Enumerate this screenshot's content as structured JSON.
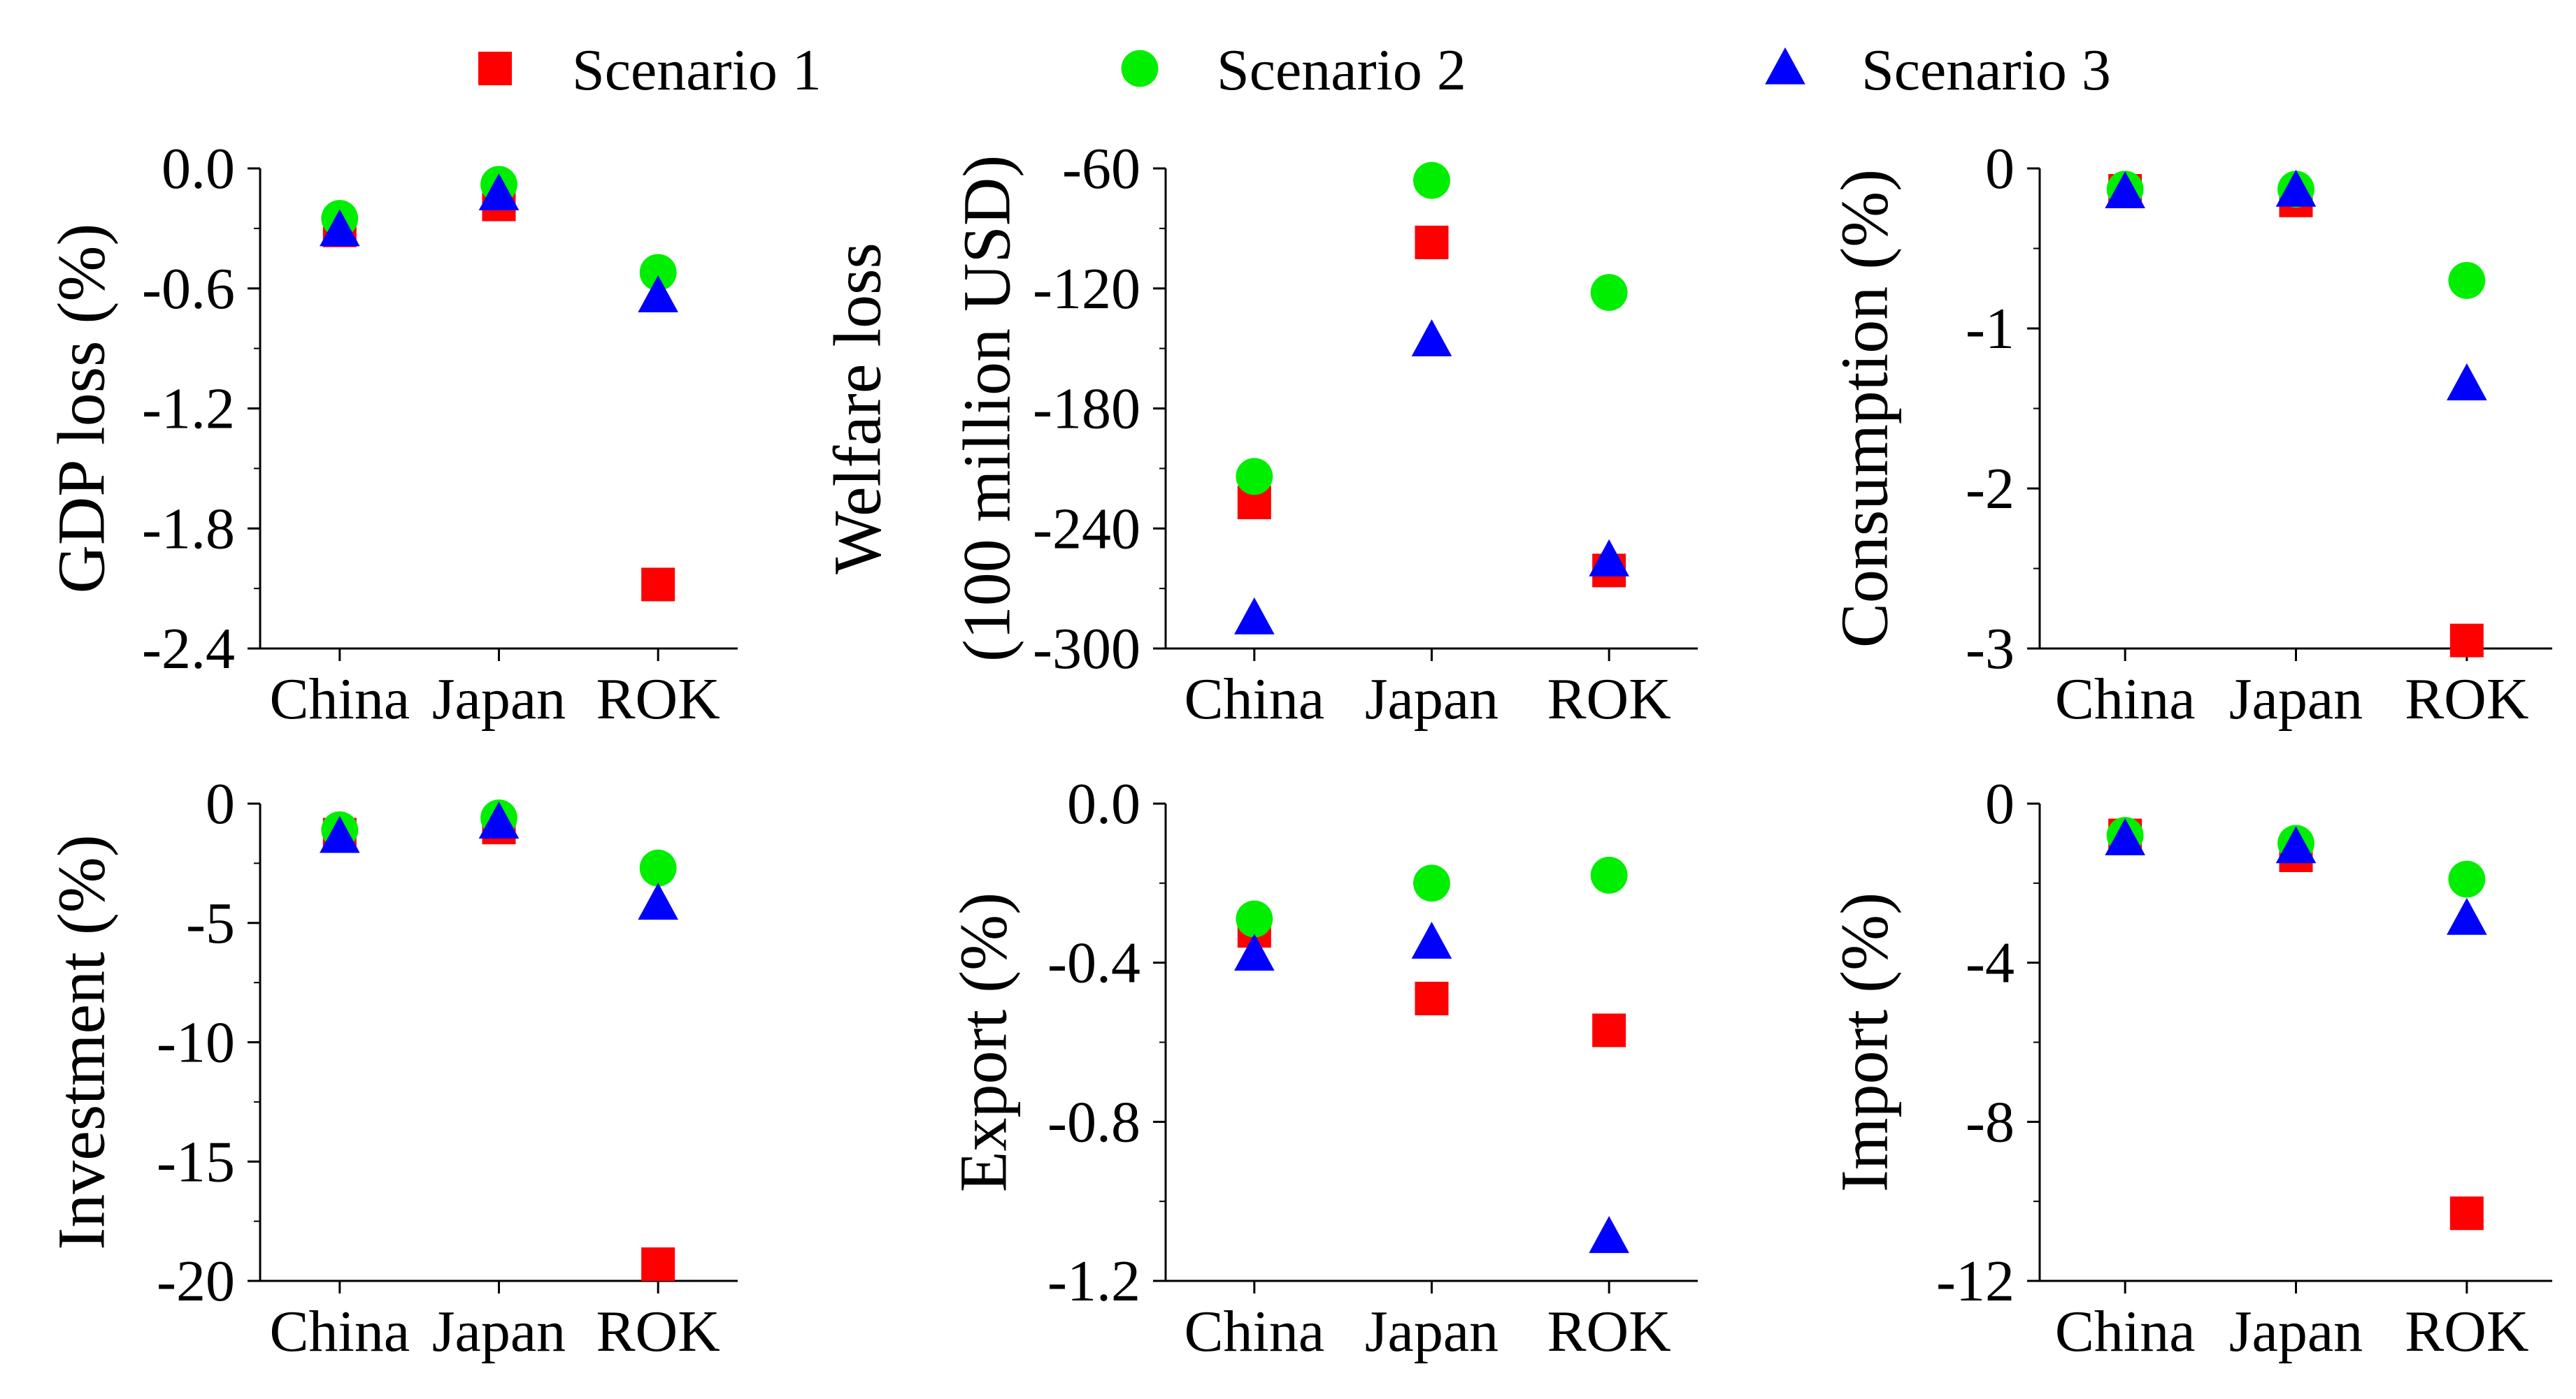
{
  "colors": {
    "Scenario 1": "#ff0000",
    "Scenario 2": "#00ee00",
    "Scenario 3": "#0000ff",
    "axis": "#000000"
  },
  "legend": [
    {
      "label": "Scenario 1",
      "marker": "square"
    },
    {
      "label": "Scenario 2",
      "marker": "circle"
    },
    {
      "label": "Scenario 3",
      "marker": "triangle"
    }
  ],
  "chart_data": [
    {
      "type": "scatter",
      "ylabel": [
        "GDP loss (%)"
      ],
      "categories": [
        "China",
        "Japan",
        "ROK"
      ],
      "ylim": [
        -2.4,
        0.0
      ],
      "yticks": [
        "0.0",
        "-0.6",
        "-1.2",
        "-1.8",
        "-2.4"
      ],
      "series": [
        {
          "name": "Scenario 1",
          "values": [
            -0.31,
            -0.18,
            -2.08
          ]
        },
        {
          "name": "Scenario 2",
          "values": [
            -0.25,
            -0.08,
            -0.52
          ]
        },
        {
          "name": "Scenario 3",
          "values": [
            -0.31,
            -0.13,
            -0.64
          ]
        }
      ]
    },
    {
      "type": "scatter",
      "ylabel": [
        "Welfare loss",
        "(100 million USD)"
      ],
      "categories": [
        "China",
        "Japan",
        "ROK"
      ],
      "ylim": [
        -300,
        -60
      ],
      "yticks": [
        "-60",
        "-120",
        "-180",
        "-240",
        "-300"
      ],
      "series": [
        {
          "name": "Scenario 1",
          "values": [
            -227,
            -97,
            -261
          ]
        },
        {
          "name": "Scenario 2",
          "values": [
            -214,
            -66,
            -122
          ]
        },
        {
          "name": "Scenario 3",
          "values": [
            -285,
            -146,
            -256
          ]
        }
      ]
    },
    {
      "type": "scatter",
      "ylabel": [
        "Consumption (%)"
      ],
      "categories": [
        "China",
        "Japan",
        "ROK"
      ],
      "ylim": [
        -3,
        0
      ],
      "yticks": [
        "0",
        "-1",
        "-2",
        "-3"
      ],
      "series": [
        {
          "name": "Scenario 1",
          "values": [
            -0.14,
            -0.2,
            -2.95
          ]
        },
        {
          "name": "Scenario 2",
          "values": [
            -0.13,
            -0.13,
            -0.7
          ]
        },
        {
          "name": "Scenario 3",
          "values": [
            -0.15,
            -0.14,
            -1.35
          ]
        }
      ]
    },
    {
      "type": "scatter",
      "ylabel": [
        "Investment (%)"
      ],
      "categories": [
        "China",
        "Japan",
        "ROK"
      ],
      "ylim": [
        -20,
        0
      ],
      "yticks": [
        "0",
        "-5",
        "-10",
        "-15",
        "-20"
      ],
      "series": [
        {
          "name": "Scenario 1",
          "values": [
            -1.3,
            -1.0,
            -19.3
          ]
        },
        {
          "name": "Scenario 2",
          "values": [
            -1.1,
            -0.6,
            -2.7
          ]
        },
        {
          "name": "Scenario 3",
          "values": [
            -1.4,
            -0.8,
            -4.2
          ]
        }
      ]
    },
    {
      "type": "scatter",
      "ylabel": [
        "Export (%)"
      ],
      "categories": [
        "China",
        "Japan",
        "ROK"
      ],
      "ylim": [
        -1.2,
        0.0
      ],
      "yticks": [
        "0.0",
        "-0.4",
        "-0.8",
        "-1.2"
      ],
      "series": [
        {
          "name": "Scenario 1",
          "values": [
            -0.32,
            -0.49,
            -0.57
          ]
        },
        {
          "name": "Scenario 2",
          "values": [
            -0.29,
            -0.2,
            -0.18
          ]
        },
        {
          "name": "Scenario 3",
          "values": [
            -0.38,
            -0.35,
            -1.09
          ]
        }
      ]
    },
    {
      "type": "scatter",
      "ylabel": [
        "Import (%)"
      ],
      "categories": [
        "China",
        "Japan",
        "ROK"
      ],
      "ylim": [
        -12,
        0
      ],
      "yticks": [
        "0",
        "-4",
        "-8",
        "-12"
      ],
      "series": [
        {
          "name": "Scenario 1",
          "values": [
            -0.8,
            -1.3,
            -10.3
          ]
        },
        {
          "name": "Scenario 2",
          "values": [
            -0.8,
            -1.0,
            -1.9
          ]
        },
        {
          "name": "Scenario 3",
          "values": [
            -0.9,
            -1.1,
            -2.9
          ]
        }
      ]
    }
  ]
}
